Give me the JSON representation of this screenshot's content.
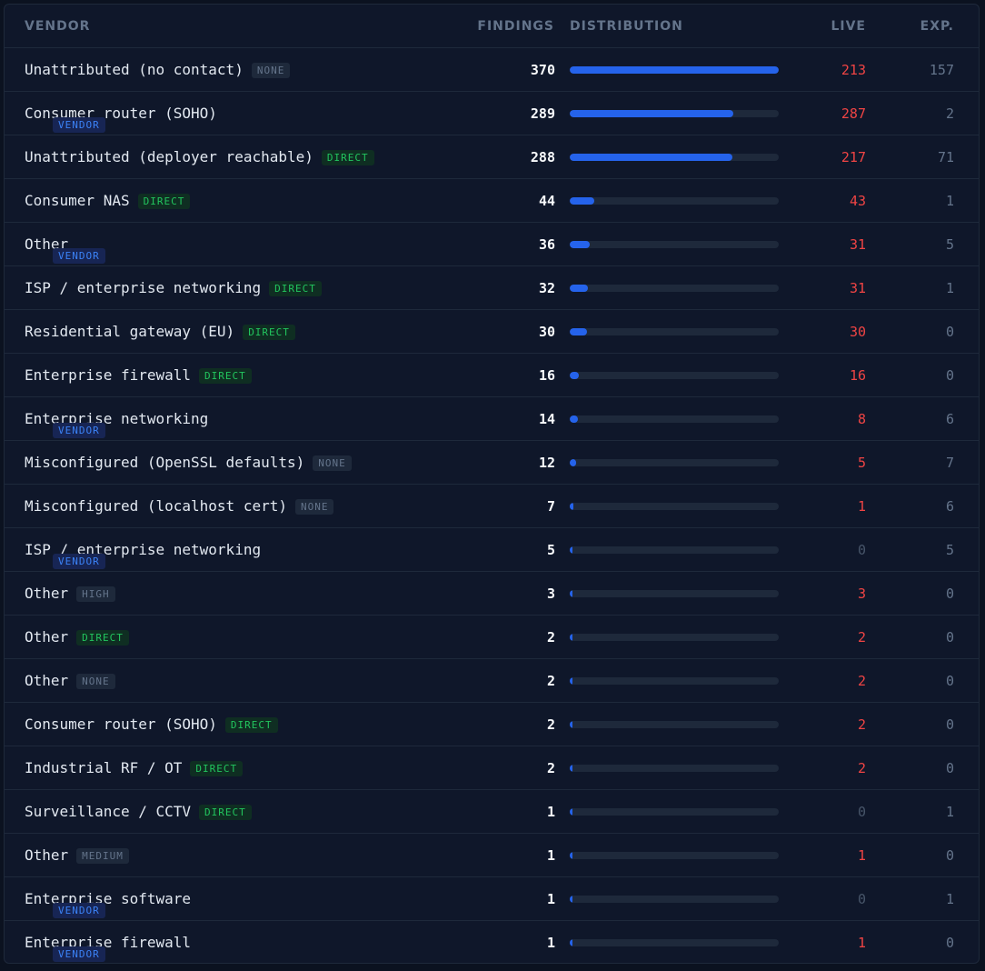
{
  "columns": {
    "vendor": "VENDOR",
    "findings": "FINDINGS",
    "distribution": "DISTRIBUTION",
    "live": "LIVE",
    "exp": "EXP."
  },
  "colors": {
    "bar": "#2563eb",
    "live_nonzero": "#ef4444",
    "badge_none": "#64748b",
    "badge_vendor": "#3b82f6",
    "badge_direct": "#22c55e"
  },
  "rows": [
    {
      "vendor": "Unattributed (no contact)",
      "badge": "NONE",
      "findings": 370,
      "live": 213,
      "exp": 157
    },
    {
      "vendor": "Consumer router (SOHO)",
      "badge": "VENDOR",
      "findings": 289,
      "live": 287,
      "exp": 2
    },
    {
      "vendor": "Unattributed (deployer reachable)",
      "badge": "DIRECT",
      "findings": 288,
      "live": 217,
      "exp": 71
    },
    {
      "vendor": "Consumer NAS",
      "badge": "DIRECT",
      "findings": 44,
      "live": 43,
      "exp": 1
    },
    {
      "vendor": "Other",
      "badge": "VENDOR",
      "findings": 36,
      "live": 31,
      "exp": 5
    },
    {
      "vendor": "ISP / enterprise networking",
      "badge": "DIRECT",
      "findings": 32,
      "live": 31,
      "exp": 1
    },
    {
      "vendor": "Residential gateway (EU)",
      "badge": "DIRECT",
      "findings": 30,
      "live": 30,
      "exp": 0
    },
    {
      "vendor": "Enterprise firewall",
      "badge": "DIRECT",
      "findings": 16,
      "live": 16,
      "exp": 0
    },
    {
      "vendor": "Enterprise networking",
      "badge": "VENDOR",
      "findings": 14,
      "live": 8,
      "exp": 6
    },
    {
      "vendor": "Misconfigured (OpenSSL defaults)",
      "badge": "NONE",
      "findings": 12,
      "live": 5,
      "exp": 7
    },
    {
      "vendor": "Misconfigured (localhost cert)",
      "badge": "NONE",
      "findings": 7,
      "live": 1,
      "exp": 6
    },
    {
      "vendor": "ISP / enterprise networking",
      "badge": "VENDOR",
      "findings": 5,
      "live": 0,
      "exp": 5
    },
    {
      "vendor": "Other",
      "badge": "HIGH",
      "findings": 3,
      "live": 3,
      "exp": 0
    },
    {
      "vendor": "Other",
      "badge": "DIRECT",
      "findings": 2,
      "live": 2,
      "exp": 0
    },
    {
      "vendor": "Other",
      "badge": "NONE",
      "findings": 2,
      "live": 2,
      "exp": 0
    },
    {
      "vendor": "Consumer router (SOHO)",
      "badge": "DIRECT",
      "findings": 2,
      "live": 2,
      "exp": 0
    },
    {
      "vendor": "Industrial RF / OT",
      "badge": "DIRECT",
      "findings": 2,
      "live": 2,
      "exp": 0
    },
    {
      "vendor": "Surveillance / CCTV",
      "badge": "DIRECT",
      "findings": 1,
      "live": 0,
      "exp": 1
    },
    {
      "vendor": "Other",
      "badge": "MEDIUM",
      "findings": 1,
      "live": 1,
      "exp": 0
    },
    {
      "vendor": "Enterprise software",
      "badge": "VENDOR",
      "findings": 1,
      "live": 0,
      "exp": 1
    },
    {
      "vendor": "Enterprise firewall",
      "badge": "VENDOR",
      "findings": 1,
      "live": 1,
      "exp": 0
    }
  ]
}
